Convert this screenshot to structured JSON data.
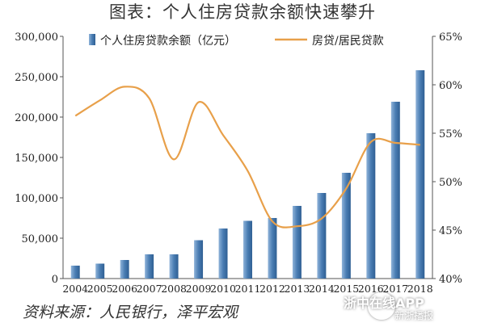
{
  "header": {
    "title": "图表：个人住房贷款余额快速攀升"
  },
  "footer": {
    "source": "资料来源：人民银行，泽平宏观"
  },
  "watermark": {
    "line1": "浙中在线APP",
    "line2": "新浙播报"
  },
  "colors": {
    "bar": "#4a7db3",
    "bar_light": "#8fb3d9",
    "line": "#e8a04a"
  },
  "chart_data": {
    "type": "bar+line",
    "categories": [
      "2004",
      "2005",
      "2006",
      "2007",
      "2008",
      "2009",
      "2010",
      "2011",
      "2012",
      "2013",
      "2014",
      "2015",
      "2016",
      "2017",
      "2018"
    ],
    "series": [
      {
        "name": "个人住房贷款余额（亿元）",
        "type": "bar",
        "axis": "left",
        "values": [
          16000,
          18500,
          23000,
          30000,
          30000,
          47500,
          62000,
          71500,
          75000,
          90000,
          106000,
          131000,
          180000,
          219000,
          258000
        ]
      },
      {
        "name": "房贷/居民贷款",
        "type": "line",
        "axis": "right",
        "values": [
          56.8,
          58.4,
          59.8,
          58.6,
          52.3,
          58.2,
          54.8,
          51.1,
          45.9,
          45.4,
          46.2,
          49.3,
          54.1,
          54.0,
          53.8
        ]
      }
    ],
    "left_axis": {
      "ylim": [
        0,
        300000
      ],
      "ticks": [
        "0",
        "50,000",
        "100,000",
        "150,000",
        "200,000",
        "250,000",
        "300,000"
      ]
    },
    "right_axis": {
      "ylim": [
        40,
        65
      ],
      "ticks": [
        "40%",
        "45%",
        "50%",
        "55%",
        "60%",
        "65%"
      ]
    },
    "legend": "top",
    "grid": false
  }
}
